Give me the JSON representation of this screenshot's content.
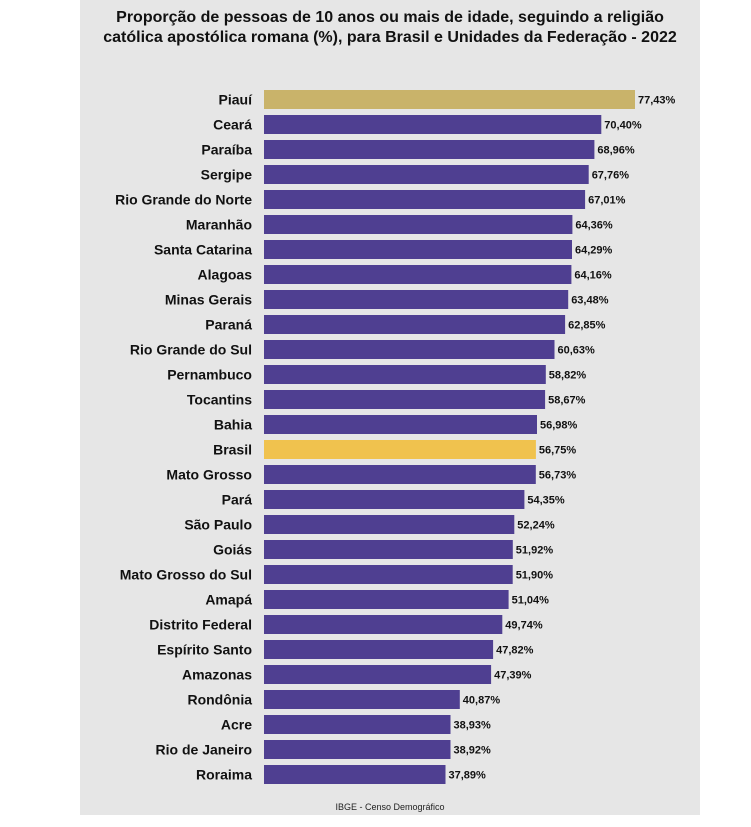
{
  "title_line1": "Proporção de pessoas de 10 anos ou mais de idade, seguindo a religião",
  "title_line2": "católica apostólica romana (%), para Brasil e Unidades da Federação - 2022",
  "source": "IBGE - Censo Demográfico",
  "colors": {
    "default": "#4f3f91",
    "top": "#c9b36a",
    "national": "#f0c24e",
    "background": "#e6e6e6"
  },
  "chart_data": {
    "type": "bar",
    "orientation": "horizontal",
    "title": "Proporção de pessoas de 10 anos ou mais de idade, seguindo a religião católica apostólica romana (%), para Brasil e Unidades da Federação - 2022",
    "xlabel": "",
    "ylabel": "",
    "xlim": [
      0,
      77.43
    ],
    "grid": false,
    "categories": [
      "Piauí",
      "Ceará",
      "Paraíba",
      "Sergipe",
      "Rio Grande do Norte",
      "Maranhão",
      "Santa Catarina",
      "Alagoas",
      "Minas Gerais",
      "Paraná",
      "Rio Grande do Sul",
      "Pernambuco",
      "Tocantins",
      "Bahia",
      "Brasil",
      "Mato Grosso",
      "Pará",
      "São Paulo",
      "Goiás",
      "Mato Grosso do Sul",
      "Amapá",
      "Distrito Federal",
      "Espírito Santo",
      "Amazonas",
      "Rondônia",
      "Acre",
      "Rio de Janeiro",
      "Roraima"
    ],
    "values": [
      77.43,
      70.4,
      68.96,
      67.76,
      67.01,
      64.36,
      64.29,
      64.16,
      63.48,
      62.85,
      60.63,
      58.82,
      58.67,
      56.98,
      56.75,
      56.73,
      54.35,
      52.24,
      51.92,
      51.9,
      51.04,
      49.74,
      47.82,
      47.39,
      40.87,
      38.93,
      38.92,
      37.89
    ],
    "value_labels": [
      "77,43%",
      "70,40%",
      "68,96%",
      "67,76%",
      "67,01%",
      "64,36%",
      "64,29%",
      "64,16%",
      "63,48%",
      "62,85%",
      "60,63%",
      "58,82%",
      "58,67%",
      "56,98%",
      "56,75%",
      "56,73%",
      "54,35%",
      "52,24%",
      "51,92%",
      "51,90%",
      "51,04%",
      "49,74%",
      "47,82%",
      "47,39%",
      "40,87%",
      "38,93%",
      "38,92%",
      "37,89%"
    ],
    "highlight": {
      "Piauí": "top",
      "Brasil": "national"
    }
  }
}
